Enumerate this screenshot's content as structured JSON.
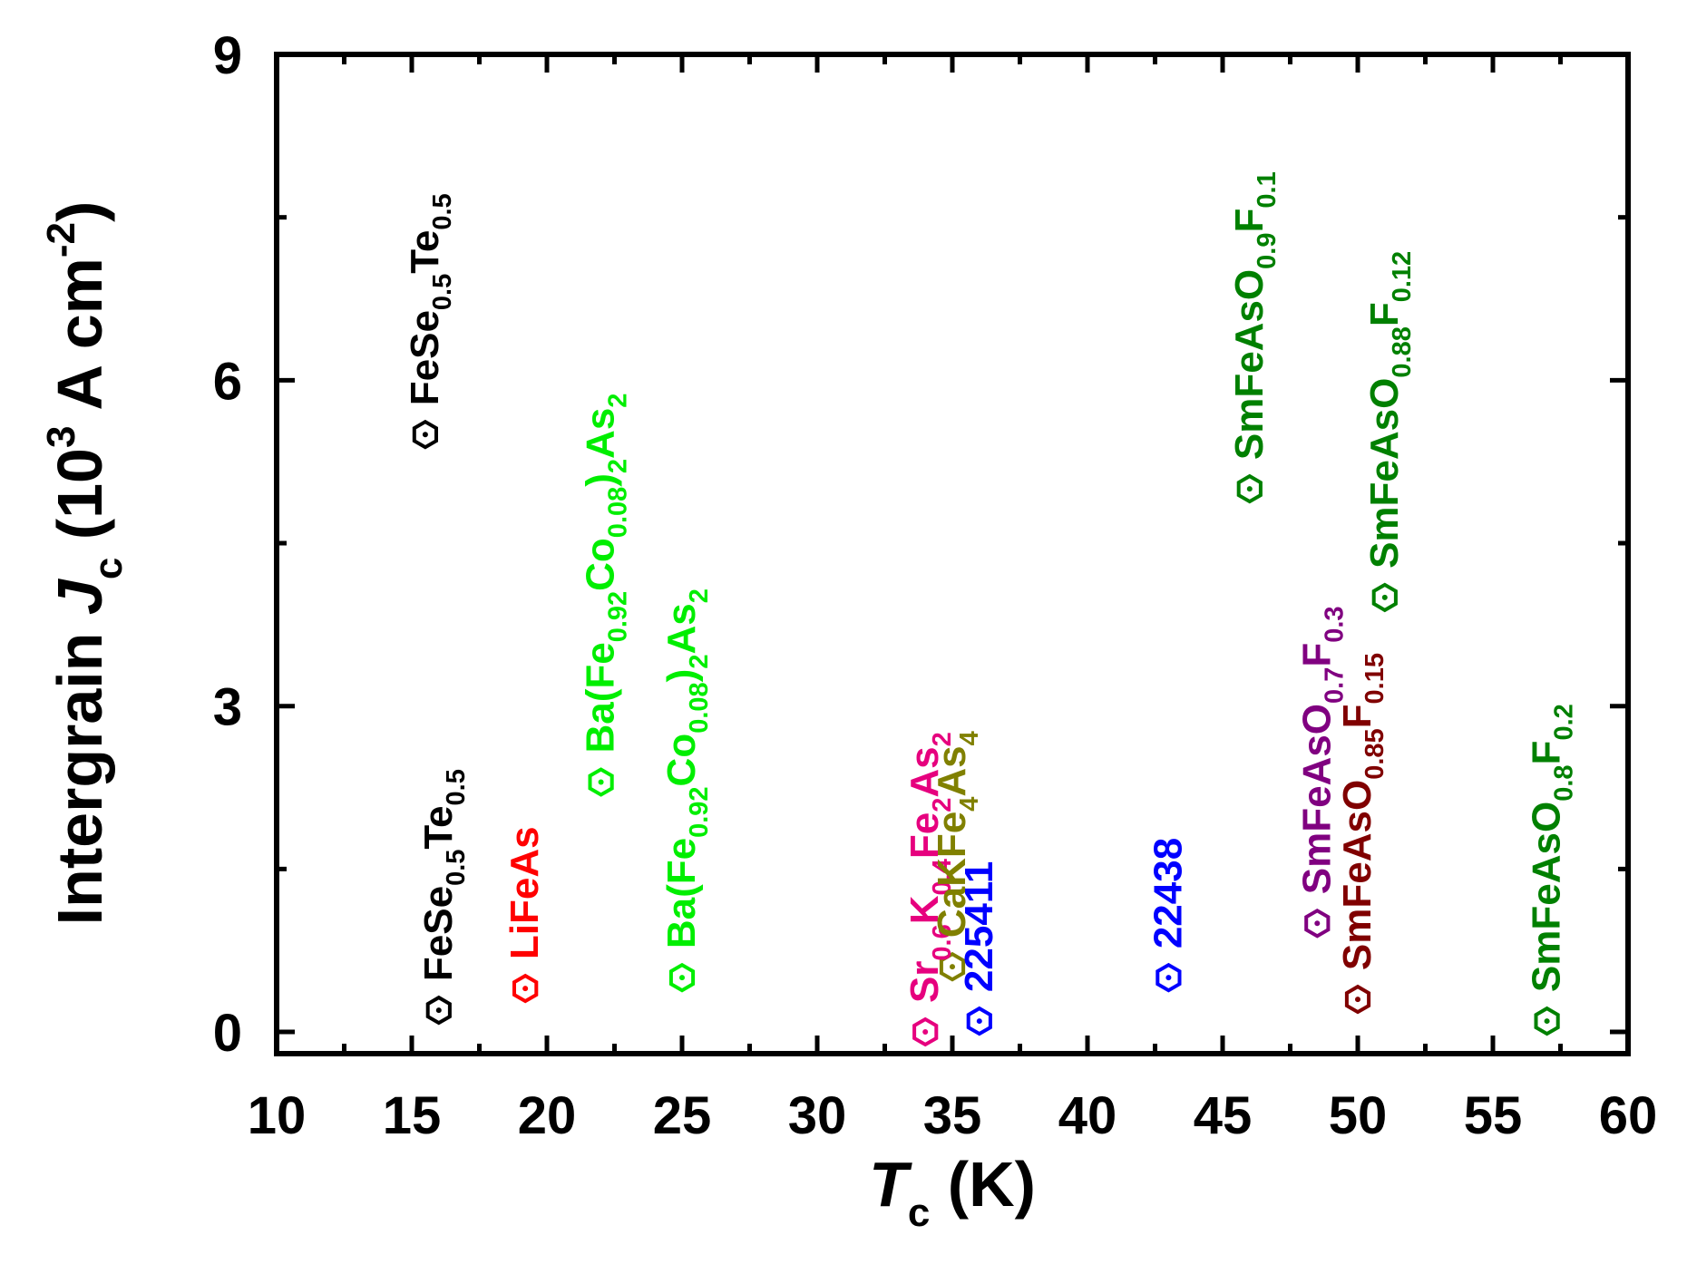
{
  "chart_data": {
    "type": "scatter",
    "xlabel": {
      "symbol": "T",
      "sub": "c",
      "unit": " (K)"
    },
    "ylabel": {
      "pre": "Intergrain ",
      "symbol": "J",
      "sub": "c",
      "unit_open": " (10",
      "exp1": "3",
      "unit_mid": " A cm",
      "exp2": "-2",
      "unit_close": ")"
    },
    "xlim": [
      10,
      60
    ],
    "ylim": [
      -0.2,
      9
    ],
    "x_ticks": [
      10,
      15,
      20,
      25,
      30,
      35,
      40,
      45,
      50,
      55,
      60
    ],
    "x_minor_ticks": [
      12.5,
      17.5,
      22.5,
      27.5,
      32.5,
      37.5,
      42.5,
      47.5,
      52.5,
      57.5
    ],
    "y_ticks": [
      0,
      3,
      6,
      9
    ],
    "y_minor_ticks": [
      1.5,
      4.5,
      7.5
    ],
    "marker": "hexagon-with-dot",
    "points": [
      {
        "id": "fesete-high",
        "x": 15.5,
        "y": 5.5,
        "color": "#000000",
        "label": [
          [
            "FeSe",
            "n"
          ],
          [
            "0.5",
            "s"
          ],
          [
            "Te",
            "n"
          ],
          [
            "0.5",
            "s"
          ]
        ]
      },
      {
        "id": "fesete-low",
        "x": 16.0,
        "y": 0.2,
        "color": "#000000",
        "label": [
          [
            "FeSe",
            "n"
          ],
          [
            "0.5",
            "s"
          ],
          [
            "Te",
            "n"
          ],
          [
            "0.5",
            "s"
          ]
        ]
      },
      {
        "id": "lifeas",
        "x": 19.2,
        "y": 0.4,
        "color": "#ff0000",
        "label": [
          [
            "LiFeAs",
            "n"
          ]
        ]
      },
      {
        "id": "bafeco-a",
        "x": 22.0,
        "y": 2.3,
        "color": "#00ee00",
        "label": [
          [
            "Ba(Fe",
            "n"
          ],
          [
            "0.92",
            "s"
          ],
          [
            "Co",
            "n"
          ],
          [
            "0.08",
            "s"
          ],
          [
            ")",
            "n"
          ],
          [
            "2",
            "s"
          ],
          [
            "As",
            "n"
          ],
          [
            "2",
            "s"
          ]
        ]
      },
      {
        "id": "bafeco-b",
        "x": 25.0,
        "y": 0.5,
        "color": "#00ee00",
        "label": [
          [
            "Ba(Fe",
            "n"
          ],
          [
            "0.92",
            "s"
          ],
          [
            "Co",
            "n"
          ],
          [
            "0.08",
            "s"
          ],
          [
            ")",
            "n"
          ],
          [
            "2",
            "s"
          ],
          [
            "As",
            "n"
          ],
          [
            "2",
            "s"
          ]
        ]
      },
      {
        "id": "srkfeas",
        "x": 34.0,
        "y": 0.0,
        "color": "#e6007e",
        "label": [
          [
            "Sr",
            "n"
          ],
          [
            "0.6",
            "s"
          ],
          [
            "K",
            "n"
          ],
          [
            "0.4",
            "s"
          ],
          [
            "Fe",
            "n"
          ],
          [
            "2",
            "s"
          ],
          [
            "As",
            "n"
          ],
          [
            "2",
            "s"
          ]
        ]
      },
      {
        "id": "cakfeas",
        "x": 35.0,
        "y": 0.6,
        "color": "#808000",
        "label": [
          [
            "CaKFe",
            "n"
          ],
          [
            "4",
            "s"
          ],
          [
            "As",
            "n"
          ],
          [
            "4",
            "s"
          ]
        ]
      },
      {
        "id": "p225411",
        "x": 36.0,
        "y": 0.1,
        "color": "#0000ff",
        "label": [
          [
            "225411",
            "n"
          ]
        ]
      },
      {
        "id": "p22438",
        "x": 43.0,
        "y": 0.5,
        "color": "#0000ff",
        "label": [
          [
            "22438",
            "n"
          ]
        ]
      },
      {
        "id": "smfeaso09",
        "x": 46.0,
        "y": 5.0,
        "color": "#008000",
        "label": [
          [
            "SmFeAsO",
            "n"
          ],
          [
            "0.9",
            "s"
          ],
          [
            "F",
            "n"
          ],
          [
            "0.1",
            "s"
          ]
        ]
      },
      {
        "id": "smfeaso07",
        "x": 48.5,
        "y": 1.0,
        "color": "#800080",
        "label": [
          [
            "SmFeAsO",
            "n"
          ],
          [
            "0.7",
            "s"
          ],
          [
            "F",
            "n"
          ],
          [
            "0.3",
            "s"
          ]
        ]
      },
      {
        "id": "smfeaso085",
        "x": 50.0,
        "y": 0.3,
        "color": "#800000",
        "label": [
          [
            "SmFeAsO",
            "n"
          ],
          [
            "0.85",
            "s"
          ],
          [
            "F",
            "n"
          ],
          [
            "0.15",
            "s"
          ]
        ]
      },
      {
        "id": "smfeaso088",
        "x": 51.0,
        "y": 4.0,
        "color": "#008000",
        "label": [
          [
            "SmFeAsO",
            "n"
          ],
          [
            "0.88",
            "s"
          ],
          [
            "F",
            "n"
          ],
          [
            "0.12",
            "s"
          ]
        ]
      },
      {
        "id": "smfeaso08",
        "x": 57.0,
        "y": 0.1,
        "color": "#008000",
        "label": [
          [
            "SmFeAsO",
            "n"
          ],
          [
            "0.8",
            "s"
          ],
          [
            "F",
            "n"
          ],
          [
            "0.2",
            "s"
          ]
        ]
      }
    ]
  }
}
